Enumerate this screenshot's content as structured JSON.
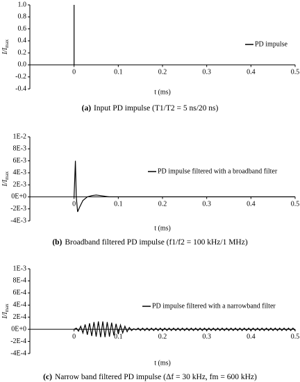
{
  "chart_data": [
    {
      "type": "line",
      "caption_label": "(a)",
      "caption": "Input PD impulse (T1/T2 = 5 ns/20 ns)",
      "ylabel": "I/I",
      "ylabel_sub": "max",
      "xlabel": "t (ms)",
      "xlim": [
        -0.1,
        0.5
      ],
      "xticks": [
        0,
        0.1,
        0.2,
        0.3,
        0.4,
        0.5
      ],
      "ylim": [
        -0.4,
        1.0
      ],
      "yticks": [
        -0.4,
        -0.2,
        {
          "value": 0,
          "label": "0.0"
        },
        0.2,
        0.4,
        0.6,
        0.8,
        {
          "value": 1,
          "label": "1.0"
        }
      ],
      "series": [
        {
          "name": "PD impulse",
          "color": "#000000",
          "x": [
            0,
            0,
            0
          ],
          "values": [
            0,
            1,
            0
          ]
        }
      ]
    },
    {
      "type": "line",
      "caption_label": "(b)",
      "caption": "Broadband filtered PD impulse (f1/f2 = 100 kHz/1 MHz)",
      "ylabel": "I/I",
      "ylabel_sub": "max",
      "xlabel": "t (ms)",
      "xlim": [
        -0.1,
        0.5
      ],
      "xticks": [
        0,
        0.1,
        0.2,
        0.3,
        0.4,
        0.5
      ],
      "ylim": [
        -0.004,
        0.01
      ],
      "yticks": [
        {
          "value": -0.004,
          "label": "-4E-3"
        },
        {
          "value": -0.002,
          "label": "-2E-3"
        },
        {
          "value": 0,
          "label": "0E+0"
        },
        {
          "value": 0.002,
          "label": "2E-3"
        },
        {
          "value": 0.004,
          "label": "4E-3"
        },
        {
          "value": 0.006,
          "label": "6E-3"
        },
        {
          "value": 0.008,
          "label": "8E-3"
        },
        {
          "value": 0.01,
          "label": "1E-2"
        }
      ],
      "series": [
        {
          "name": "PD impulse filtered with a broadband filter",
          "color": "#000000",
          "x": [
            0,
            0.003,
            0.005,
            0.008,
            0.012,
            0.02,
            0.03,
            0.04,
            0.05,
            0.06,
            0.07,
            0.08,
            0.1,
            0.5
          ],
          "values": [
            0,
            0.006,
            0,
            -0.0025,
            -0.0018,
            -0.0006,
            0,
            0.0002,
            0.0003,
            0.0002,
            0.0001,
            0,
            0,
            0
          ]
        }
      ]
    },
    {
      "type": "line",
      "caption_label": "(c)",
      "caption": "Narrow band filtered PD impulse (Δf = 30 kHz, fm = 600 kHz)",
      "ylabel": "I/I",
      "ylabel_sub": "max",
      "xlabel": "t (ms)",
      "xlim": [
        -0.1,
        0.5
      ],
      "xticks": [
        0,
        0.1,
        0.2,
        0.3,
        0.4,
        0.5
      ],
      "ylim": [
        -0.0004,
        0.001
      ],
      "yticks": [
        {
          "value": -0.0004,
          "label": "-4E-4"
        },
        {
          "value": -0.0002,
          "label": "-2E-4"
        },
        {
          "value": 0,
          "label": "0E+0"
        },
        {
          "value": 0.0002,
          "label": "2E-4"
        },
        {
          "value": 0.0004,
          "label": "4E-4"
        },
        {
          "value": 0.0006,
          "label": "6E-4"
        },
        {
          "value": 0.0008,
          "label": "8E-4"
        },
        {
          "value": 0.001,
          "label": "1E-3"
        }
      ],
      "series": [
        {
          "name": "PD impulse filtered with a narrowband filter",
          "color": "#000000",
          "x": [
            0,
            0.005,
            0.01,
            0.015,
            0.02,
            0.025,
            0.03,
            0.035,
            0.04,
            0.045,
            0.05,
            0.055,
            0.06,
            0.065,
            0.07,
            0.075,
            0.08,
            0.085,
            0.09,
            0.095,
            0.1,
            0.105,
            0.11,
            0.115,
            0.12,
            0.125,
            0.13,
            0.135,
            0.14,
            0.145,
            0.15,
            0.155,
            0.16,
            0.165,
            0.17,
            0.175,
            0.18,
            0.185,
            0.19,
            0.195,
            0.2,
            0.205,
            0.21,
            0.215,
            0.22,
            0.225,
            0.23,
            0.235,
            0.24,
            0.245,
            0.25,
            0.255,
            0.26,
            0.265,
            0.27,
            0.275,
            0.28,
            0.285,
            0.29,
            0.295,
            0.3,
            0.305,
            0.31,
            0.315,
            0.32,
            0.325,
            0.33,
            0.335,
            0.34,
            0.345,
            0.35,
            0.355,
            0.36,
            0.365,
            0.37,
            0.375,
            0.38,
            0.385,
            0.39,
            0.395,
            0.4,
            0.405,
            0.41,
            0.415,
            0.42,
            0.425,
            0.43,
            0.435,
            0.44,
            0.445,
            0.45,
            0.455,
            0.46,
            0.465,
            0.47,
            0.475,
            0.48,
            0.485,
            0.49,
            0.495,
            0.5
          ],
          "values": [
            0,
            2e-05,
            -3e-05,
            5e-05,
            -6e-05,
            8e-05,
            -9e-05,
            0.0001,
            -0.00011,
            0.00012,
            -0.00012,
            0.00013,
            -0.00013,
            0.00013,
            -0.00013,
            0.00012,
            -0.00012,
            0.00011,
            -0.0001,
            9e-05,
            -8e-05,
            7e-05,
            -6e-05,
            5e-05,
            -4e-05,
            3e-05,
            -2e-05,
            1e-05,
            -1e-05,
            2e-05,
            -2e-05,
            2e-05,
            -2e-05,
            2e-05,
            -2e-05,
            2e-05,
            -2e-05,
            2e-05,
            -2e-05,
            2e-05,
            -2e-05,
            2e-05,
            -2e-05,
            2e-05,
            -2e-05,
            2e-05,
            -2e-05,
            2e-05,
            -2e-05,
            2e-05,
            -2e-05,
            2e-05,
            -2e-05,
            2e-05,
            -2e-05,
            2e-05,
            -2e-05,
            2e-05,
            -2e-05,
            2e-05,
            -2e-05,
            2e-05,
            -2e-05,
            2e-05,
            -2e-05,
            2e-05,
            -2e-05,
            2e-05,
            -2e-05,
            2e-05,
            -2e-05,
            2e-05,
            -2e-05,
            2e-05,
            -2e-05,
            2e-05,
            -2e-05,
            2e-05,
            -2e-05,
            2e-05,
            -2e-05,
            2e-05,
            -2e-05,
            2e-05,
            -2e-05,
            2e-05,
            -2e-05,
            2e-05,
            -2e-05,
            2e-05,
            -2e-05,
            2e-05,
            -2e-05,
            2e-05,
            -2e-05,
            2e-05,
            -2e-05,
            2e-05,
            -2e-05,
            2e-05,
            -2e-05
          ]
        }
      ]
    }
  ]
}
